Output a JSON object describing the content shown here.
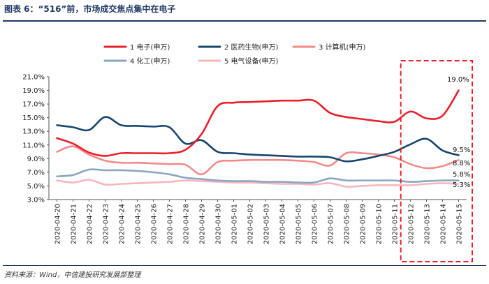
{
  "figure": {
    "title": "图表 6：“516”前，市场成交焦点集中在电子",
    "source": "资料来源：Wind，中信建投研究发展部整理"
  },
  "chart_data": {
    "type": "line",
    "title": "图表 6：“516”前，市场成交焦点集中在电子",
    "xlabel": "",
    "ylabel": "",
    "ylim": [
      3.0,
      21.0
    ],
    "yticks": [
      "21.0%",
      "19.0%",
      "17.0%",
      "15.0%",
      "13.0%",
      "11.0%",
      "9.0%",
      "7.0%",
      "5.0%",
      "3.0%"
    ],
    "grid": false,
    "legend_position": "top",
    "categories": [
      "2020-04-20",
      "2020-04-21",
      "2020-04-22",
      "2020-04-23",
      "2020-04-24",
      "2020-04-25",
      "2020-04-26",
      "2020-04-27",
      "2020-04-28",
      "2020-04-29",
      "2020-04-30",
      "2020-05-01",
      "2020-05-02",
      "2020-05-03",
      "2020-05-04",
      "2020-05-05",
      "2020-05-06",
      "2020-05-07",
      "2020-05-08",
      "2020-05-09",
      "2020-05-10",
      "2020-05-11",
      "2020-05-12",
      "2020-05-13",
      "2020-05-14",
      "2020-05-15"
    ],
    "series": [
      {
        "name": "1  电子(申万)",
        "color": "#e8202a",
        "values": [
          12.0,
          11.2,
          9.9,
          9.4,
          9.8,
          9.8,
          9.8,
          9.8,
          10.3,
          12.6,
          16.7,
          17.2,
          17.3,
          17.4,
          17.5,
          17.5,
          17.5,
          15.7,
          15.1,
          14.8,
          14.5,
          14.4,
          15.9,
          14.9,
          15.3,
          19.0
        ],
        "end_label": "19.0%"
      },
      {
        "name": "2  医药生物(申万)",
        "color": "#17466e",
        "values": [
          13.9,
          13.6,
          13.2,
          15.1,
          13.9,
          13.8,
          13.7,
          13.6,
          11.2,
          11.7,
          10.0,
          9.8,
          9.6,
          9.5,
          9.4,
          9.3,
          9.3,
          9.2,
          8.6,
          8.9,
          9.4,
          10.0,
          11.1,
          11.9,
          10.2,
          9.5
        ],
        "end_label": "9.5%"
      },
      {
        "name": "3  计算机(申万)",
        "color": "#f28a8a",
        "values": [
          10.0,
          10.8,
          9.6,
          8.7,
          8.4,
          8.4,
          8.3,
          8.2,
          8.1,
          6.7,
          8.5,
          8.7,
          8.8,
          8.8,
          8.8,
          8.7,
          8.5,
          8.0,
          9.8,
          9.8,
          9.6,
          9.2,
          8.2,
          7.6,
          7.9,
          8.8
        ],
        "end_label": "8.8%"
      },
      {
        "name": "4  化工(申万)",
        "color": "#8aa6c1",
        "values": [
          6.4,
          6.6,
          7.4,
          7.3,
          7.3,
          7.2,
          7.0,
          6.7,
          6.2,
          6.0,
          5.8,
          5.7,
          5.7,
          5.6,
          5.6,
          5.5,
          5.5,
          6.1,
          5.8,
          5.8,
          5.8,
          5.8,
          5.6,
          5.7,
          5.8,
          5.8
        ],
        "end_label": "5.8%"
      },
      {
        "name": "5  电气设备(申万)",
        "color": "#f7b6bd",
        "values": [
          5.8,
          5.5,
          5.9,
          5.2,
          5.3,
          5.4,
          5.5,
          5.6,
          5.8,
          5.7,
          5.6,
          5.5,
          5.5,
          5.4,
          5.3,
          5.3,
          5.2,
          5.4,
          4.9,
          5.0,
          5.1,
          5.1,
          5.1,
          5.3,
          5.4,
          5.3
        ],
        "end_label": "5.3%"
      }
    ],
    "annotations": [
      {
        "type": "dashed-box",
        "color": "#e8202a",
        "from_category": "2020-05-12",
        "to_category": "2020-05-15"
      }
    ]
  }
}
